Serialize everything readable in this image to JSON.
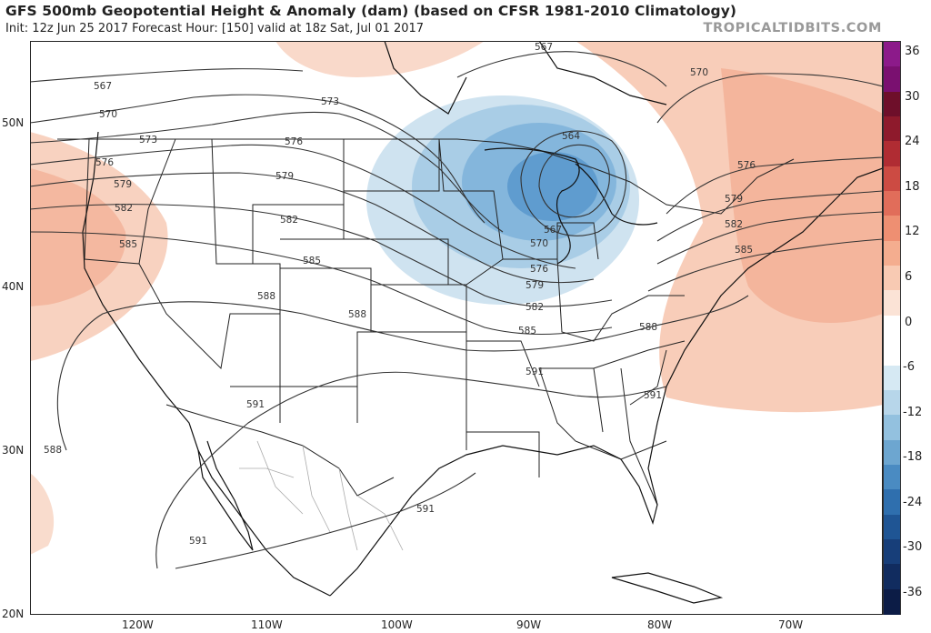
{
  "header": {
    "title": "GFS 500mb Geopotential Height & Anomaly (dam) (based on CFSR 1981-2010 Climatology)",
    "subtitle": "Init: 12z Jun 25 2017   Forecast Hour: [150]   valid at 18z Sat, Jul 01 2017",
    "brand": "TROPICALTIDBITS.COM"
  },
  "axes": {
    "latitude_labels": [
      "50N",
      "40N",
      "30N",
      "20N"
    ],
    "longitude_labels": [
      "120W",
      "110W",
      "100W",
      "90W",
      "80W",
      "70W"
    ]
  },
  "colorbar": {
    "ticks": [
      "36",
      "30",
      "24",
      "18",
      "12",
      "6",
      "0",
      "-6",
      "-12",
      "-18",
      "-24",
      "-30",
      "-36"
    ],
    "colors": {
      "positive": [
        "#fbe3d6",
        "#f8cab3",
        "#f4ad8f",
        "#ee8f72",
        "#e16d5a",
        "#cc4b43",
        "#b02c33",
        "#8e1a2c",
        "#6e0f2a",
        "#7a1070",
        "#8c1a8a"
      ],
      "neutral": "#ffffff",
      "negative": [
        "#d6e9f3",
        "#b7d6ea",
        "#93c1df",
        "#6da6d0",
        "#4a8bc2",
        "#2f6fae",
        "#1f5594",
        "#173e79",
        "#112c5f",
        "#0c1c46"
      ]
    }
  },
  "contour_labels": [
    {
      "text": "567",
      "name": "contour-567-nw"
    },
    {
      "text": "570",
      "name": "contour-570-nw"
    },
    {
      "text": "573",
      "name": "contour-573-nw"
    },
    {
      "text": "576",
      "name": "contour-576-nw"
    },
    {
      "text": "579",
      "name": "contour-579-nw"
    },
    {
      "text": "582",
      "name": "contour-582-nw"
    },
    {
      "text": "585",
      "name": "contour-585-nw"
    },
    {
      "text": "573",
      "name": "contour-573-canada"
    },
    {
      "text": "576",
      "name": "contour-576-plains"
    },
    {
      "text": "579",
      "name": "contour-579-plains"
    },
    {
      "text": "582",
      "name": "contour-582-plains"
    },
    {
      "text": "585",
      "name": "contour-585-plains"
    },
    {
      "text": "588",
      "name": "contour-588-west"
    },
    {
      "text": "588",
      "name": "contour-588-central"
    },
    {
      "text": "567",
      "name": "contour-567-north"
    },
    {
      "text": "564",
      "name": "contour-564-low"
    },
    {
      "text": "567",
      "name": "contour-567-low"
    },
    {
      "text": "570",
      "name": "contour-570-low"
    },
    {
      "text": "576",
      "name": "contour-576-low"
    },
    {
      "text": "579",
      "name": "contour-579-low"
    },
    {
      "text": "582",
      "name": "contour-582-low"
    },
    {
      "text": "585",
      "name": "contour-585-low"
    },
    {
      "text": "591",
      "name": "contour-591-tx"
    },
    {
      "text": "591",
      "name": "contour-591-sw"
    },
    {
      "text": "588",
      "name": "contour-588-pacific"
    },
    {
      "text": "591",
      "name": "contour-591-mexico"
    },
    {
      "text": "591",
      "name": "contour-591-gulf"
    },
    {
      "text": "591",
      "name": "contour-591-se"
    },
    {
      "text": "588",
      "name": "contour-588-east"
    },
    {
      "text": "570",
      "name": "contour-570-ne"
    },
    {
      "text": "576",
      "name": "contour-576-ne"
    },
    {
      "text": "579",
      "name": "contour-579-ne"
    },
    {
      "text": "582",
      "name": "contour-582-ne"
    },
    {
      "text": "585",
      "name": "contour-585-ne"
    }
  ]
}
